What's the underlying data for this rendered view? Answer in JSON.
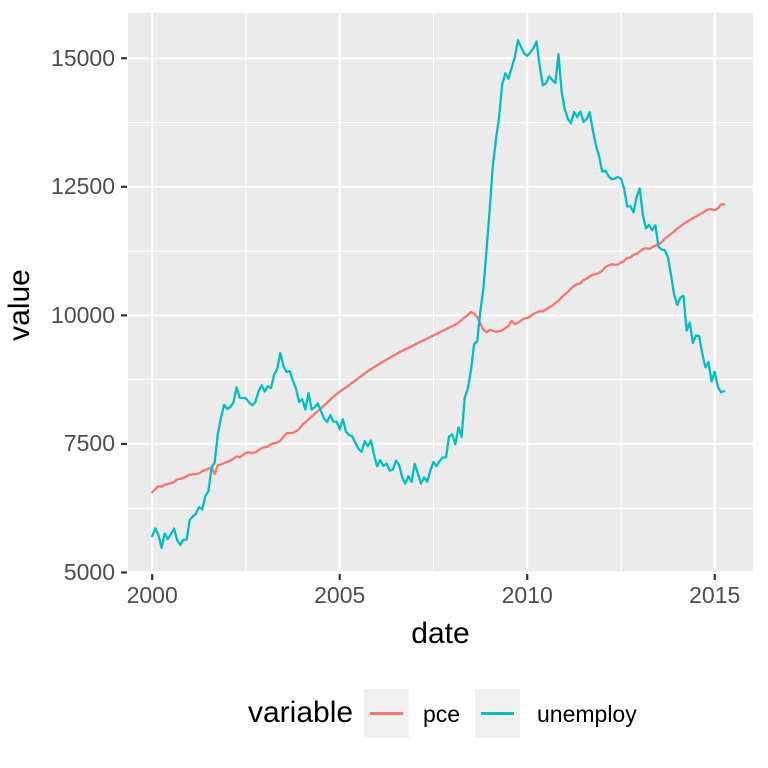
{
  "chart_data": {
    "type": "line",
    "title": "",
    "xlabel": "date",
    "ylabel": "value",
    "legend_title": "variable",
    "legend_position": "bottom",
    "figure_background": "#FFFFFF",
    "panel_background": "#EBEBEB",
    "grid_color": "#FFFFFF",
    "axis_text_color": "#4D4D4D",
    "axis_title_color": "#000000",
    "tick_mark_color": "#333333",
    "legend_key_background": "#F0F0F0",
    "x_axis": {
      "ticks": [
        2000,
        2005,
        2010,
        2015
      ],
      "tick_labels": [
        "2000",
        "2005",
        "2010",
        "2015"
      ],
      "minor_ticks": [
        2002.5,
        2007.5,
        2012.5
      ],
      "range": [
        1999.355,
        2016.02
      ]
    },
    "y_axis": {
      "ticks": [
        5000,
        7500,
        10000,
        12500,
        15000
      ],
      "tick_labels": [
        "5000",
        "7500",
        "10000",
        "12500",
        "15000"
      ],
      "minor_ticks": [
        6250,
        8750,
        11250,
        13750
      ],
      "range": [
        4990,
        15880
      ]
    },
    "x_start_year": 2000.0,
    "x_step_years": 0.0833333,
    "x_end_year": 2015.25,
    "x_unit": "monthly observations, Jan 2000 - Apr 2015",
    "series": [
      {
        "name": "pce",
        "color": "#F8766D",
        "values": [
          6560,
          6620,
          6680,
          6670,
          6710,
          6720,
          6735,
          6760,
          6810,
          6820,
          6840,
          6870,
          6905,
          6910,
          6915,
          6925,
          6970,
          6995,
          7015,
          7045,
          6915,
          7085,
          7100,
          7130,
          7150,
          7175,
          7210,
          7255,
          7240,
          7285,
          7330,
          7335,
          7325,
          7340,
          7375,
          7420,
          7435,
          7450,
          7495,
          7510,
          7530,
          7565,
          7640,
          7710,
          7710,
          7715,
          7745,
          7790,
          7870,
          7920,
          7975,
          8030,
          8085,
          8140,
          8195,
          8250,
          8300,
          8360,
          8420,
          8470,
          8520,
          8560,
          8600,
          8645,
          8690,
          8735,
          8780,
          8825,
          8870,
          8915,
          8955,
          8990,
          9030,
          9070,
          9105,
          9140,
          9175,
          9210,
          9245,
          9280,
          9310,
          9340,
          9370,
          9400,
          9430,
          9460,
          9490,
          9520,
          9550,
          9580,
          9610,
          9640,
          9670,
          9700,
          9730,
          9760,
          9790,
          9820,
          9860,
          9910,
          9960,
          10010,
          10065,
          10035,
          9965,
          9840,
          9720,
          9670,
          9720,
          9700,
          9680,
          9690,
          9710,
          9755,
          9795,
          9890,
          9830,
          9855,
          9900,
          9940,
          9950,
          9980,
          10030,
          10055,
          10080,
          10080,
          10115,
          10155,
          10190,
          10240,
          10285,
          10350,
          10405,
          10455,
          10525,
          10575,
          10610,
          10625,
          10685,
          10715,
          10760,
          10790,
          10805,
          10825,
          10870,
          10940,
          10970,
          10995,
          10985,
          10990,
          11025,
          11060,
          11110,
          11125,
          11180,
          11195,
          11240,
          11290,
          11305,
          11290,
          11325,
          11355,
          11385,
          11420,
          11490,
          11535,
          11585,
          11630,
          11690,
          11730,
          11780,
          11815,
          11855,
          11890,
          11920,
          11960,
          11990,
          12030,
          12060,
          12062,
          12046,
          12082,
          12158,
          12159
        ]
      },
      {
        "name": "unemploy",
        "color": "#00BFC4",
        "values": [
          5708,
          5858,
          5733,
          5481,
          5758,
          5651,
          5747,
          5853,
          5625,
          5534,
          5639,
          5634,
          6023,
          6089,
          6141,
          6271,
          6226,
          6484,
          6583,
          7042,
          7142,
          7694,
          8003,
          8258,
          8182,
          8215,
          8304,
          8599,
          8399,
          8393,
          8390,
          8304,
          8251,
          8307,
          8520,
          8640,
          8520,
          8618,
          8588,
          8842,
          8957,
          9266,
          9011,
          8896,
          8921,
          8732,
          8576,
          8317,
          8370,
          8167,
          8491,
          8170,
          8212,
          8286,
          8136,
          7990,
          7927,
          8061,
          7932,
          7934,
          7784,
          7980,
          7737,
          7672,
          7651,
          7524,
          7406,
          7345,
          7553,
          7453,
          7566,
          7279,
          7064,
          7184,
          7072,
          7120,
          6980,
          7001,
          7175,
          7091,
          6847,
          6727,
          6872,
          6762,
          7116,
          6927,
          6731,
          6850,
          6766,
          6979,
          7149,
          7067,
          7170,
          7237,
          7240,
          7645,
          7685,
          7497,
          7822,
          7637,
          8395,
          8575,
          8937,
          9438,
          9494,
          10074,
          10538,
          11286,
          12058,
          12898,
          13426,
          13853,
          14499,
          14707,
          14601,
          14814,
          15009,
          15352,
          15219,
          15098,
          15046,
          15113,
          15202,
          15325,
          14849,
          14474,
          14512,
          14648,
          14579,
          14516,
          15081,
          14348,
          14013,
          13820,
          13737,
          13957,
          13855,
          13962,
          13763,
          13818,
          13948,
          13594,
          13302,
          13093,
          12797,
          12813,
          12713,
          12646,
          12660,
          12692,
          12656,
          12471,
          12115,
          12124,
          12005,
          12298,
          12471,
          11950,
          11689,
          11760,
          11654,
          11751,
          11335,
          11279,
          11270,
          11136,
          10787,
          10404,
          10202,
          10349,
          10380,
          9702,
          9859,
          9460,
          9608,
          9599,
          9262,
          8990,
          9090,
          8717,
          8903,
          8610,
          8504,
          8526
        ]
      }
    ]
  }
}
